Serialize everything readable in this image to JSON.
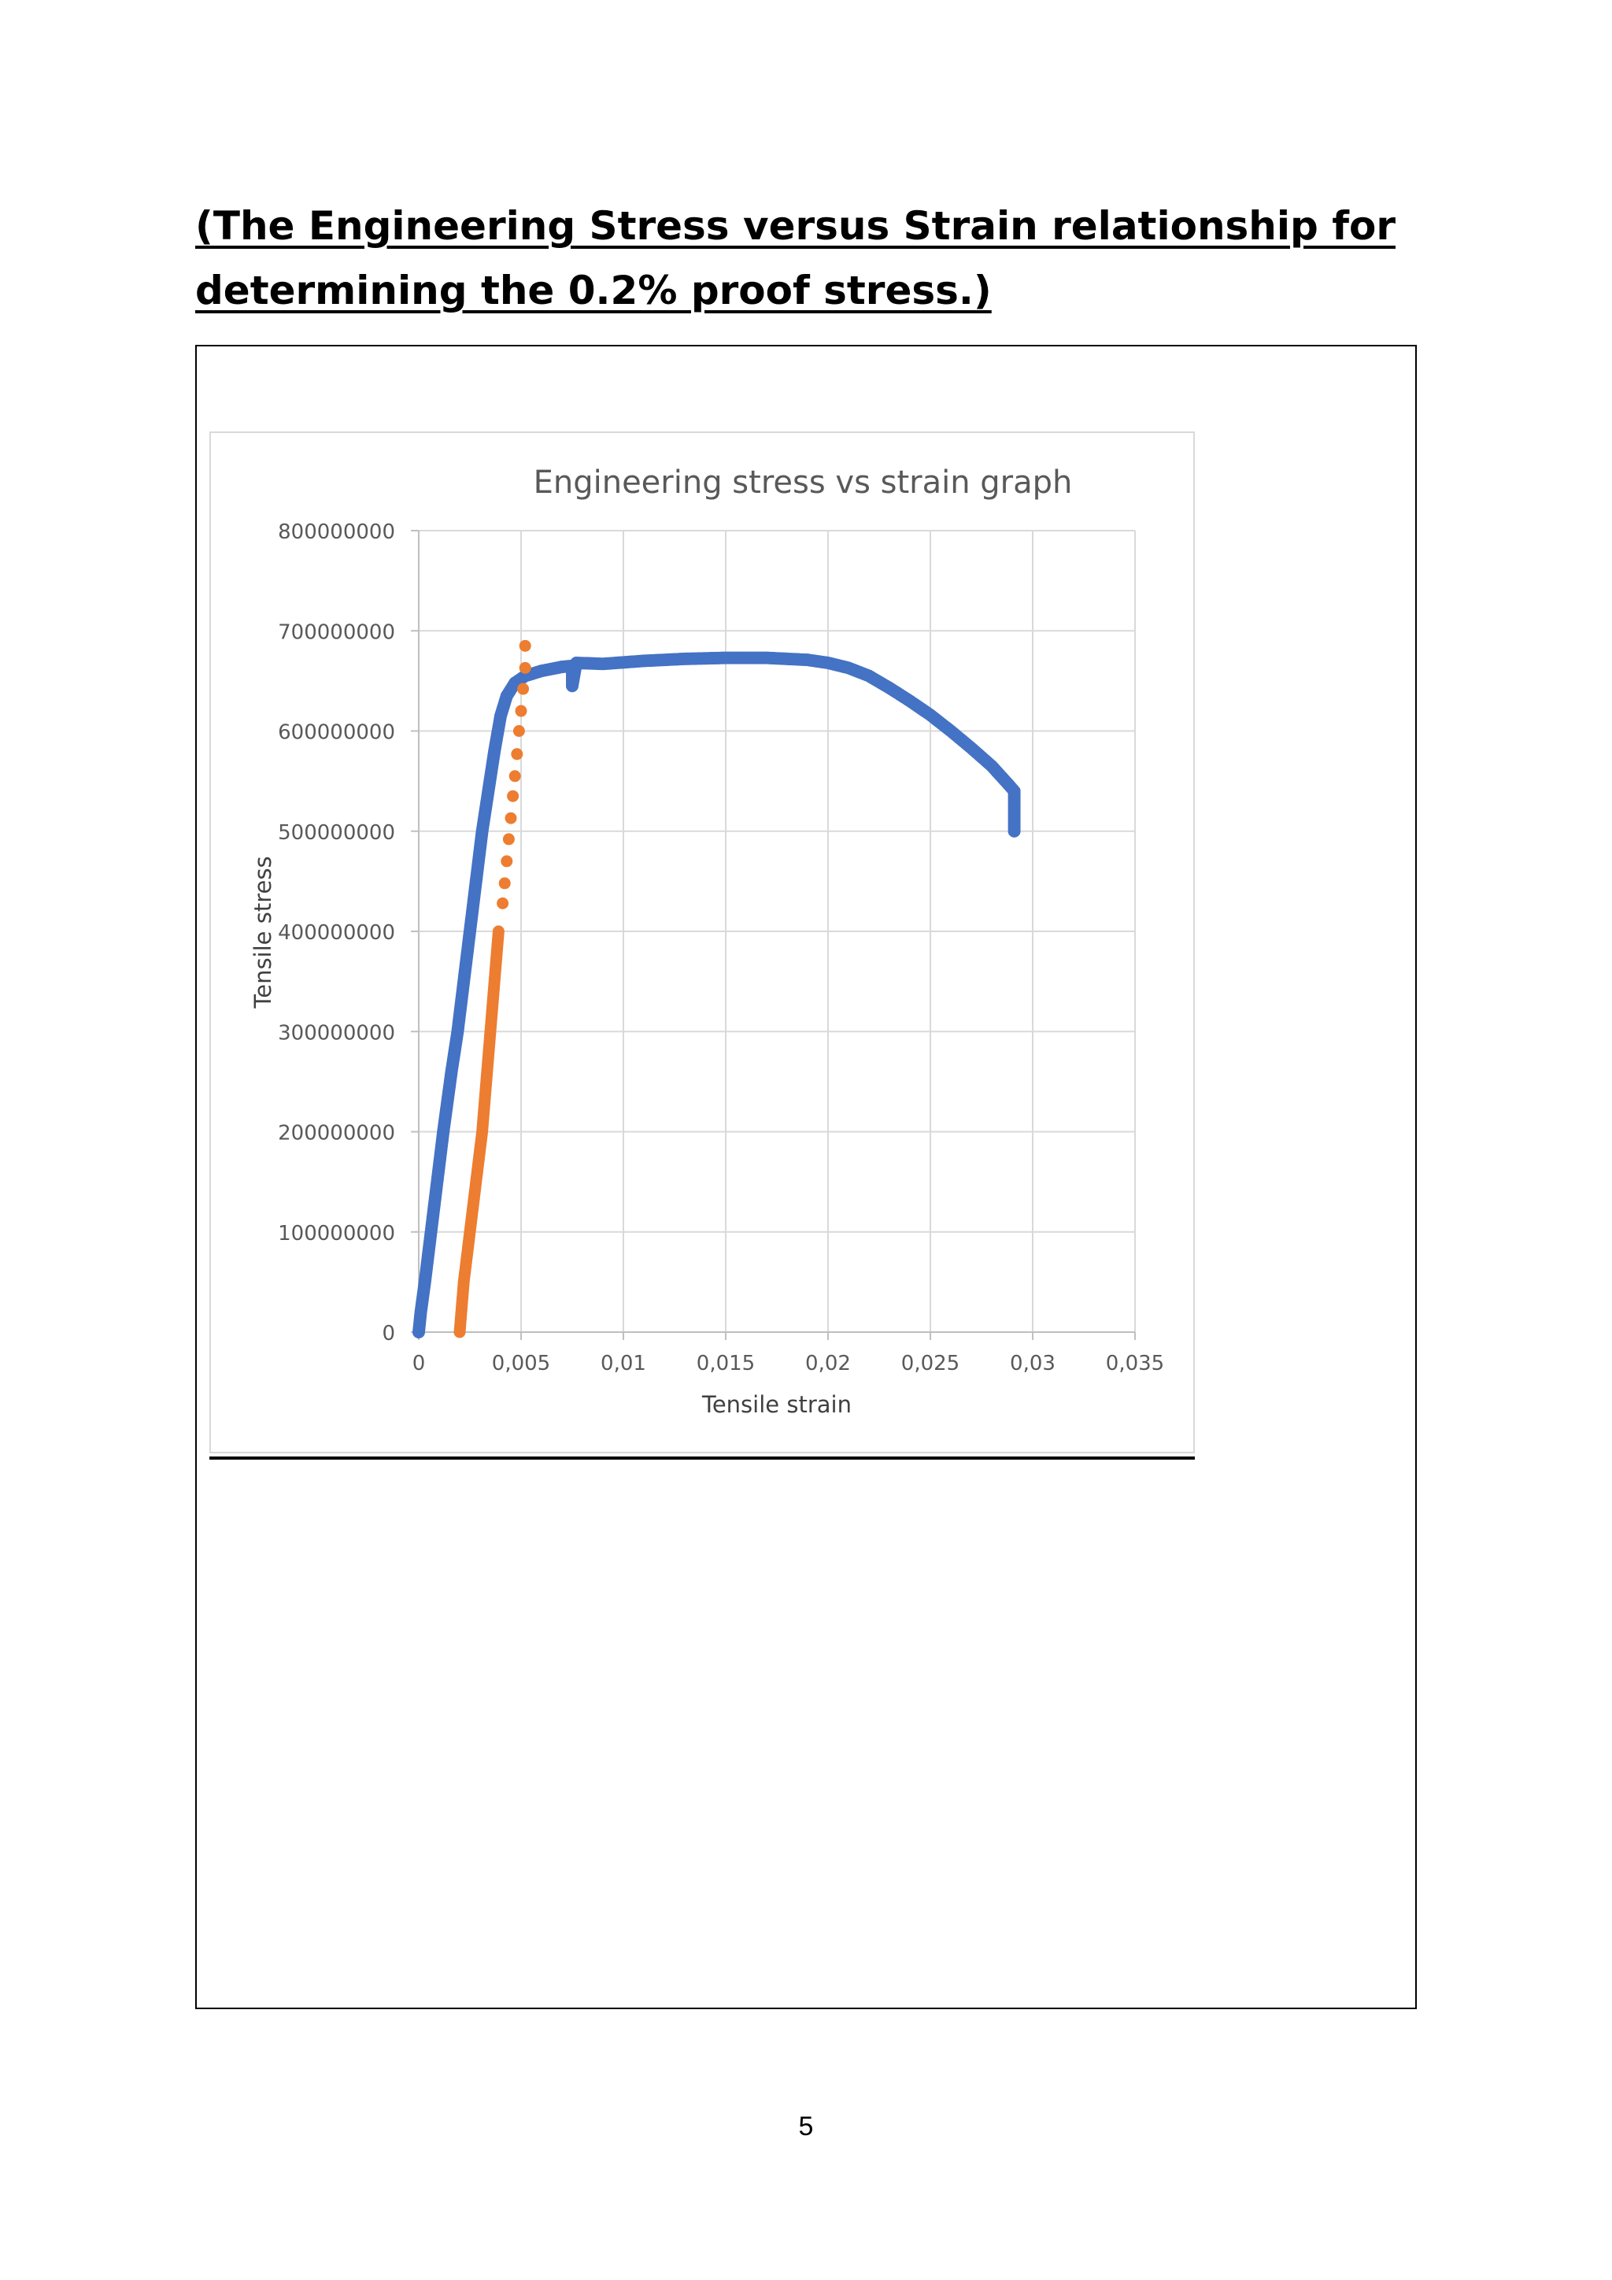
{
  "document": {
    "heading_line1": "(The Engineering Stress versus Strain relationship for",
    "heading_line2": "determining the 0.2% proof stress.)",
    "page_number": "5"
  },
  "chart_data": {
    "type": "scatter",
    "title": "Engineering stress vs strain graph",
    "xlabel": "Tensile strain",
    "ylabel": "Tensile stress",
    "xlim": [
      0,
      0.035
    ],
    "ylim": [
      0,
      800000000
    ],
    "x_ticks": [
      "0",
      "0,005",
      "0,01",
      "0,015",
      "0,02",
      "0,025",
      "0,03",
      "0,035"
    ],
    "y_ticks": [
      "0",
      "100000000",
      "200000000",
      "300000000",
      "400000000",
      "500000000",
      "600000000",
      "700000000",
      "800000000"
    ],
    "grid": true,
    "legend": "none",
    "series": [
      {
        "color": "#4472c4",
        "marker": "dense",
        "points": [
          [
            0,
            0
          ],
          [
            0.0001,
            20000000
          ],
          [
            0.0003,
            50000000
          ],
          [
            0.0006,
            100000000
          ],
          [
            0.0009,
            150000000
          ],
          [
            0.0012,
            200000000
          ],
          [
            0.0016,
            260000000
          ],
          [
            0.0019,
            300000000
          ],
          [
            0.0022,
            350000000
          ],
          [
            0.0025,
            400000000
          ],
          [
            0.0028,
            450000000
          ],
          [
            0.0031,
            500000000
          ],
          [
            0.0034,
            540000000
          ],
          [
            0.0037,
            580000000
          ],
          [
            0.004,
            615000000
          ],
          [
            0.0043,
            635000000
          ],
          [
            0.0047,
            648000000
          ],
          [
            0.0052,
            655000000
          ],
          [
            0.006,
            660000000
          ],
          [
            0.007,
            664000000
          ],
          [
            0.0075,
            665000000
          ],
          [
            0.0075,
            645000000
          ],
          [
            0.0077,
            668000000
          ],
          [
            0.009,
            667000000
          ],
          [
            0.011,
            670000000
          ],
          [
            0.013,
            672000000
          ],
          [
            0.015,
            673000000
          ],
          [
            0.017,
            673000000
          ],
          [
            0.019,
            671000000
          ],
          [
            0.02,
            668000000
          ],
          [
            0.021,
            663000000
          ],
          [
            0.022,
            655000000
          ],
          [
            0.023,
            643000000
          ],
          [
            0.024,
            630000000
          ],
          [
            0.025,
            616000000
          ],
          [
            0.026,
            600000000
          ],
          [
            0.027,
            583000000
          ],
          [
            0.028,
            565000000
          ],
          [
            0.0288,
            547000000
          ],
          [
            0.0291,
            540000000
          ],
          [
            0.0291,
            500000000
          ]
        ]
      },
      {
        "color": "#ed7d31",
        "marker": "dot",
        "points": [
          [
            0.002,
            0
          ],
          [
            0.0022,
            50000000
          ],
          [
            0.0025,
            100000000
          ],
          [
            0.0028,
            150000000
          ],
          [
            0.0031,
            200000000
          ],
          [
            0.0033,
            250000000
          ],
          [
            0.0035,
            300000000
          ],
          [
            0.0037,
            350000000
          ],
          [
            0.0039,
            400000000
          ],
          [
            0.0041,
            428000000
          ],
          [
            0.0042,
            448000000
          ],
          [
            0.0043,
            470000000
          ],
          [
            0.0044,
            492000000
          ],
          [
            0.0045,
            513000000
          ],
          [
            0.0046,
            535000000
          ],
          [
            0.0047,
            555000000
          ],
          [
            0.0048,
            577000000
          ],
          [
            0.0049,
            600000000
          ],
          [
            0.005,
            620000000
          ],
          [
            0.0051,
            642000000
          ],
          [
            0.0052,
            663000000
          ],
          [
            0.0052,
            685000000
          ]
        ]
      }
    ]
  }
}
